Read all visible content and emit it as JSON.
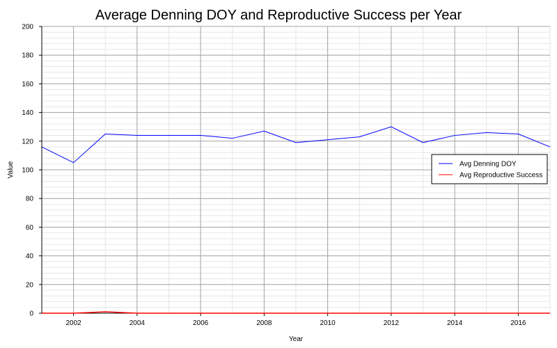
{
  "chart_data": {
    "type": "line",
    "title": "Average Denning DOY and Reproductive Success per Year",
    "xlabel": "Year",
    "ylabel": "Value",
    "x": [
      2001,
      2002,
      2003,
      2004,
      2005,
      2006,
      2007,
      2008,
      2009,
      2010,
      2011,
      2012,
      2013,
      2014,
      2015,
      2016,
      2017
    ],
    "xlim": [
      2001,
      2017
    ],
    "ylim": [
      0,
      200
    ],
    "x_ticks": [
      "2002",
      "2004",
      "2006",
      "2008",
      "2010",
      "2012",
      "2014",
      "2016"
    ],
    "y_ticks": [
      "0",
      "20",
      "40",
      "60",
      "80",
      "100",
      "120",
      "140",
      "160",
      "180",
      "200"
    ],
    "grid": true,
    "legend_position": "right",
    "series": [
      {
        "name": "Avg Denning DOY",
        "color": "#0000ff",
        "values": [
          116,
          105,
          125,
          124,
          124,
          124,
          122,
          127,
          119,
          121,
          123,
          130,
          119,
          124,
          126,
          125,
          116
        ]
      },
      {
        "name": "Avg Reproductive Success",
        "color": "#ff0000",
        "values": [
          0,
          0,
          1,
          0,
          0,
          0,
          0,
          0,
          0,
          0,
          0,
          0,
          0,
          0,
          0,
          0,
          0
        ]
      }
    ]
  }
}
